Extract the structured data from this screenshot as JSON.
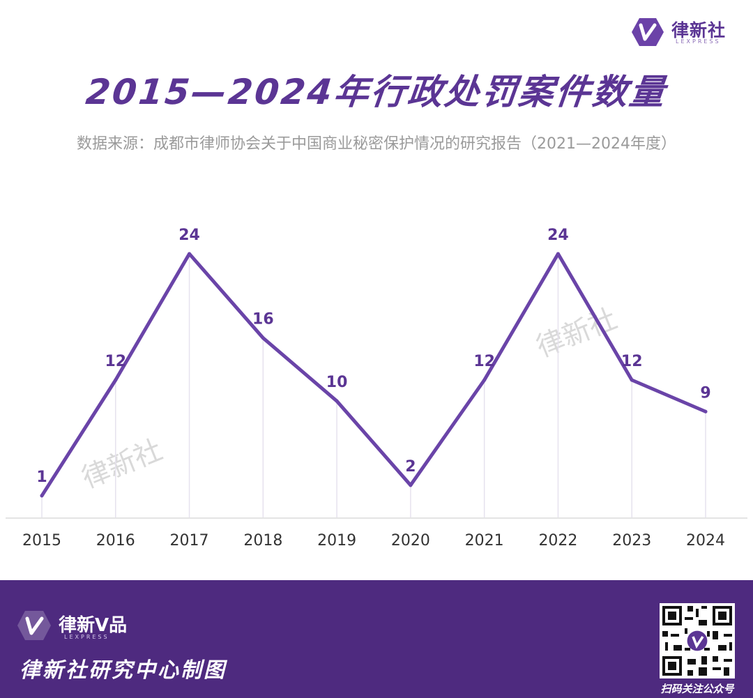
{
  "brand": {
    "name": "律新社",
    "sub": "LEXPRESS"
  },
  "header": {
    "title": "2015—2024年行政处罚案件数量",
    "subtitle": "数据来源：成都市律师协会关于中国商业秘密保护情况的研究报告（2021—2024年度）"
  },
  "watermark": "律新社",
  "chart_data": {
    "type": "line",
    "categories": [
      "2015",
      "2016",
      "2017",
      "2018",
      "2019",
      "2020",
      "2021",
      "2022",
      "2023",
      "2024"
    ],
    "values": [
      1,
      12,
      24,
      16,
      10,
      2,
      12,
      24,
      12,
      9
    ],
    "ylim": [
      0,
      24
    ],
    "color": "#6a44a8",
    "grid": false,
    "legend": "none"
  },
  "footer": {
    "brand": "律新V品",
    "brand_sub": "LEXPRESS",
    "credit": "律新社研究中心制图",
    "qr_label": "扫码关注公众号"
  }
}
